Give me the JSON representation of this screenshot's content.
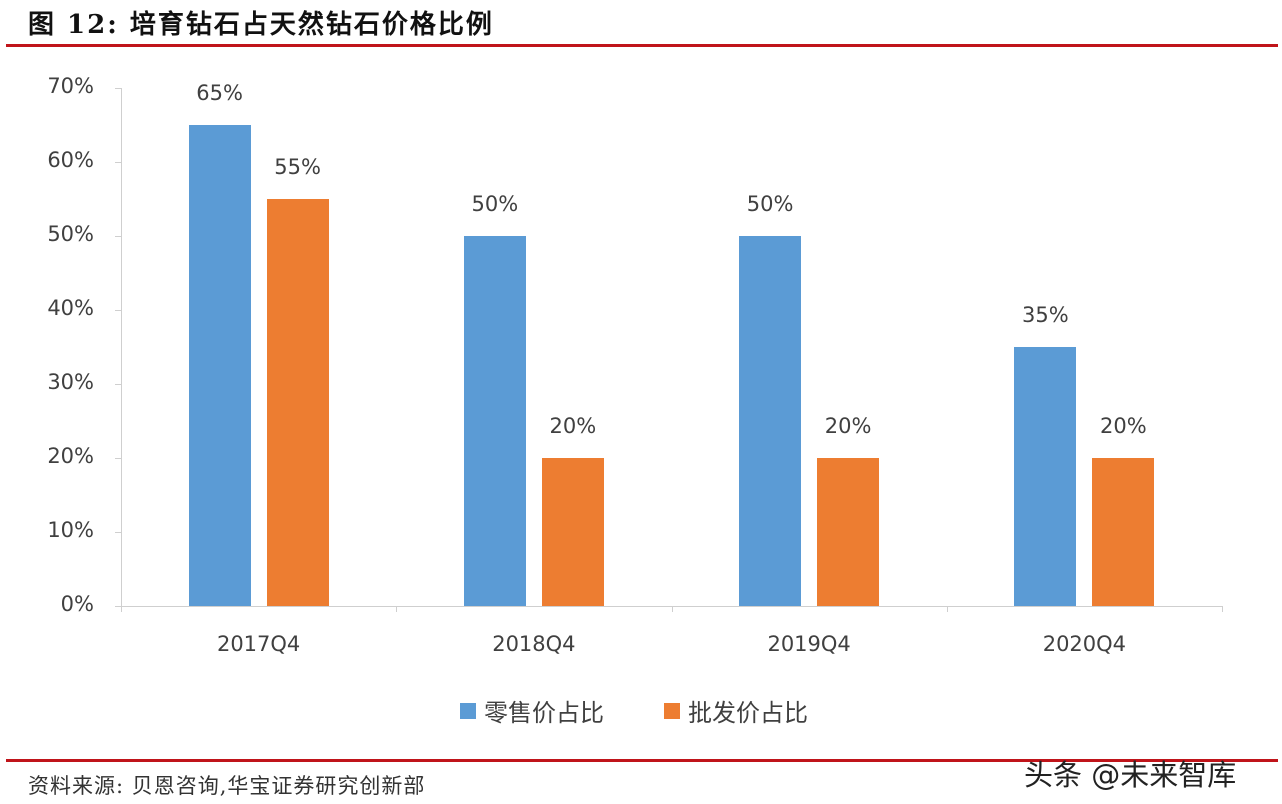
{
  "header": {
    "title": "图 12: 培育钻石占天然钻石价格比例"
  },
  "footer": {
    "source": "资料来源: 贝恩咨询,华宝证券研究创新部",
    "watermark": "头条 @未来智库"
  },
  "colors": {
    "retail": "#5b9bd5",
    "wholesale": "#ed7d31",
    "rule": "#c0141a"
  },
  "chart_data": {
    "type": "bar",
    "title": "培育钻石占天然钻石价格比例",
    "categories": [
      "2017Q4",
      "2018Q4",
      "2019Q4",
      "2020Q4"
    ],
    "series": [
      {
        "name": "零售价占比",
        "values": [
          65,
          50,
          50,
          35
        ],
        "labels": [
          "65%",
          "50%",
          "50%",
          "35%"
        ]
      },
      {
        "name": "批发价占比",
        "values": [
          55,
          20,
          20,
          20
        ],
        "labels": [
          "55%",
          "20%",
          "20%",
          "20%"
        ]
      }
    ],
    "xlabel": "",
    "ylabel": "",
    "ylim": [
      0,
      70
    ],
    "yticks": [
      "0%",
      "10%",
      "20%",
      "30%",
      "40%",
      "50%",
      "60%",
      "70%"
    ],
    "grid": false,
    "legend_position": "bottom"
  }
}
